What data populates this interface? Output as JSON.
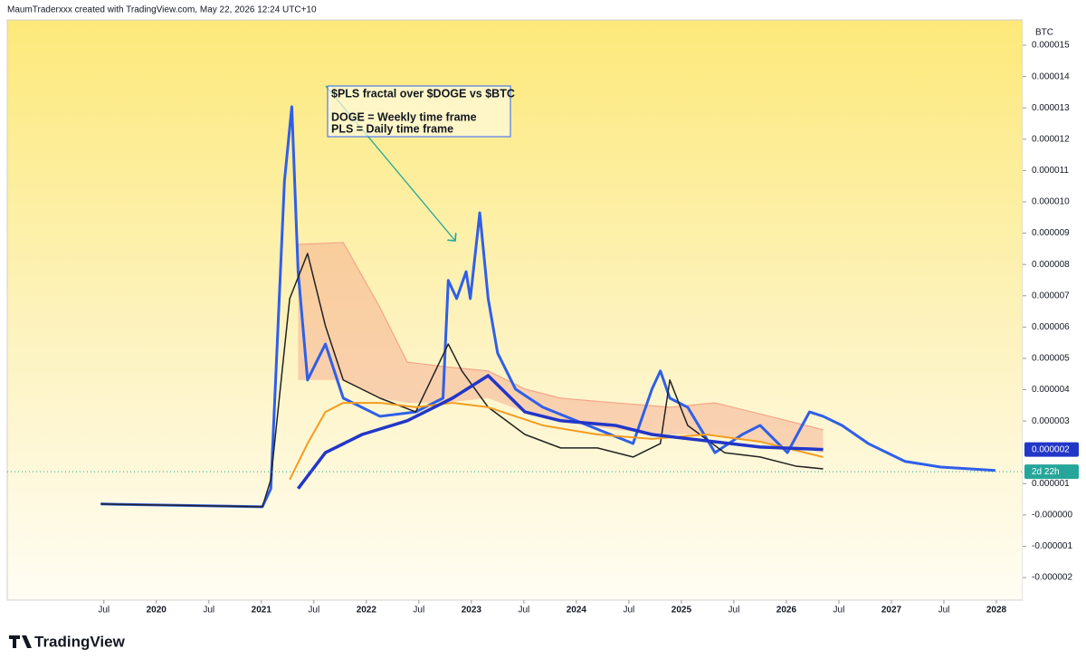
{
  "header": "MaumTraderxxx created with TradingView.com, May 22, 2026 12:24 UTC+10",
  "footer": "TradingView",
  "chart_data": {
    "type": "line",
    "currency": "BTC",
    "annotation": [
      "$PLS fractal over $DOGE vs $BTC",
      "DOGE = Weekly time frame",
      "PLS = Daily time frame"
    ],
    "xlim": [
      2018.58,
      2028.25
    ],
    "xticks": [
      {
        "value": 2019.5,
        "label": "Jul"
      },
      2020,
      {
        "value": 2020.5,
        "label": "Jul"
      },
      2021,
      {
        "value": 2021.5,
        "label": "Jul"
      },
      2022,
      {
        "value": 2022.5,
        "label": "Jul"
      },
      2023,
      {
        "value": 2023.5,
        "label": "Jul"
      },
      2024,
      {
        "value": 2024.5,
        "label": "Jul"
      },
      2025,
      {
        "value": 2025.5,
        "label": "Jul"
      },
      2026,
      {
        "value": 2026.5,
        "label": "Jul"
      },
      2027,
      {
        "value": 2027.5,
        "label": "Jul"
      },
      2028
    ],
    "ylim": [
      -2.72e-06,
      1.581e-05
    ],
    "yticks": [
      {
        "value": -2e-06,
        "label": "-0.000002"
      },
      {
        "value": -1e-06,
        "label": "-0.000001"
      },
      {
        "value": 0,
        "label": "-0.000000"
      },
      1e-06,
      3e-06,
      4e-06,
      5e-06,
      6e-06,
      7e-06,
      8e-06,
      9e-06,
      {
        "value": 1e-05,
        "label": "0.000010"
      },
      1.1e-05,
      1.2e-05,
      1.3e-05,
      1.4e-05,
      1.5e-05
    ],
    "price_label": {
      "value": 2.09e-06,
      "label": "0.000002"
    },
    "countdown": {
      "value": 1.38e-06,
      "label": "2d 22h"
    },
    "cloud": {
      "color": "#f4a58a",
      "x": [
        2021.35,
        2021.78,
        2022.13,
        2022.39,
        2022.73,
        2023.16,
        2023.51,
        2023.85,
        2024.37,
        2024.89,
        2025.32,
        2025.84,
        2026.35
      ],
      "values": [
        8.64e-06,
        8.7e-06,
        6.62e-06,
        4.88e-06,
        4.74e-06,
        4.6e-06,
        4.02e-06,
        3.73e-06,
        3.58e-06,
        3.44e-06,
        3.58e-06,
        3.15e-06,
        2.72e-06
      ],
      "lower": [
        4.31e-06,
        4.31e-06,
        3.73e-06,
        3.58e-06,
        3.58e-06,
        3.73e-06,
        3.29e-06,
        3.01e-06,
        2.72e-06,
        2.57e-06,
        2.57e-06,
        2.28e-06,
        1.99e-06
      ]
    },
    "series": [
      {
        "color": "#2f5fe8",
        "width": 3,
        "x": [
          2019.47,
          2021.01,
          2021.09,
          2021.22,
          2021.29,
          2021.35,
          2021.44,
          2021.61,
          2021.78,
          2022.13,
          2022.47,
          2022.73,
          2022.78,
          2022.86,
          2022.95,
          2022.99,
          2023.08,
          2023.16,
          2023.25,
          2023.42,
          2023.68,
          2024.11,
          2024.54,
          2024.72,
          2024.8,
          2024.89,
          2025.06,
          2025.32,
          2025.58,
          2025.75,
          2026.01,
          2026.22,
          2026.35,
          2026.53,
          2026.78,
          2027.13,
          2027.47,
          2027.99
        ],
        "values": [
          3.5e-07,
          2.6e-07,
          8.4e-07,
          1.066e-05,
          1.304e-05,
          7.77e-06,
          4.31e-06,
          5.46e-06,
          3.73e-06,
          3.15e-06,
          3.29e-06,
          3.73e-06,
          7.49e-06,
          6.91e-06,
          7.77e-06,
          6.91e-06,
          9.65e-06,
          6.91e-06,
          5.17e-06,
          4.02e-06,
          3.44e-06,
          2.86e-06,
          2.28e-06,
          4.02e-06,
          4.6e-06,
          3.73e-06,
          3.44e-06,
          1.99e-06,
          2.57e-06,
          2.86e-06,
          1.99e-06,
          3.29e-06,
          3.15e-06,
          2.86e-06,
          2.28e-06,
          1.71e-06,
          1.53e-06,
          1.42e-06
        ]
      },
      {
        "color": "#222222",
        "width": 1.5,
        "x": [
          2019.47,
          2021.01,
          2021.09,
          2021.27,
          2021.44,
          2021.61,
          2021.78,
          2022.13,
          2022.47,
          2022.78,
          2022.91,
          2023.16,
          2023.51,
          2023.85,
          2024.2,
          2024.54,
          2024.8,
          2024.89,
          2025.06,
          2025.41,
          2025.75,
          2026.09,
          2026.35
        ],
        "values": [
          3.5e-07,
          2.6e-07,
          1.13e-06,
          6.91e-06,
          8.35e-06,
          6.04e-06,
          4.31e-06,
          3.73e-06,
          3.29e-06,
          5.46e-06,
          4.6e-06,
          3.44e-06,
          2.57e-06,
          2.14e-06,
          2.14e-06,
          1.85e-06,
          2.28e-06,
          4.31e-06,
          2.86e-06,
          1.99e-06,
          1.85e-06,
          1.56e-06,
          1.47e-06
        ]
      },
      {
        "color": "#f39c1f",
        "width": 2,
        "x": [
          2021.27,
          2021.44,
          2021.61,
          2021.78,
          2022.13,
          2022.47,
          2022.82,
          2023.16,
          2023.68,
          2024.2,
          2024.72,
          2025.23,
          2025.75,
          2026.35
        ],
        "values": [
          1.13e-06,
          2.28e-06,
          3.29e-06,
          3.58e-06,
          3.58e-06,
          3.44e-06,
          3.58e-06,
          3.44e-06,
          2.86e-06,
          2.57e-06,
          2.43e-06,
          2.57e-06,
          2.34e-06,
          1.85e-06
        ]
      },
      {
        "color": "#2236c8",
        "width": 3.5,
        "x": [
          2021.35,
          2021.61,
          2021.96,
          2022.39,
          2022.82,
          2023.16,
          2023.51,
          2023.85,
          2024.37,
          2024.72,
          2025.23,
          2025.75,
          2026.35
        ],
        "values": [
          8.4e-07,
          1.99e-06,
          2.57e-06,
          3.01e-06,
          3.73e-06,
          4.45e-06,
          3.29e-06,
          3.01e-06,
          2.86e-06,
          2.57e-06,
          2.37e-06,
          2.17e-06,
          2.09e-06
        ]
      }
    ]
  }
}
